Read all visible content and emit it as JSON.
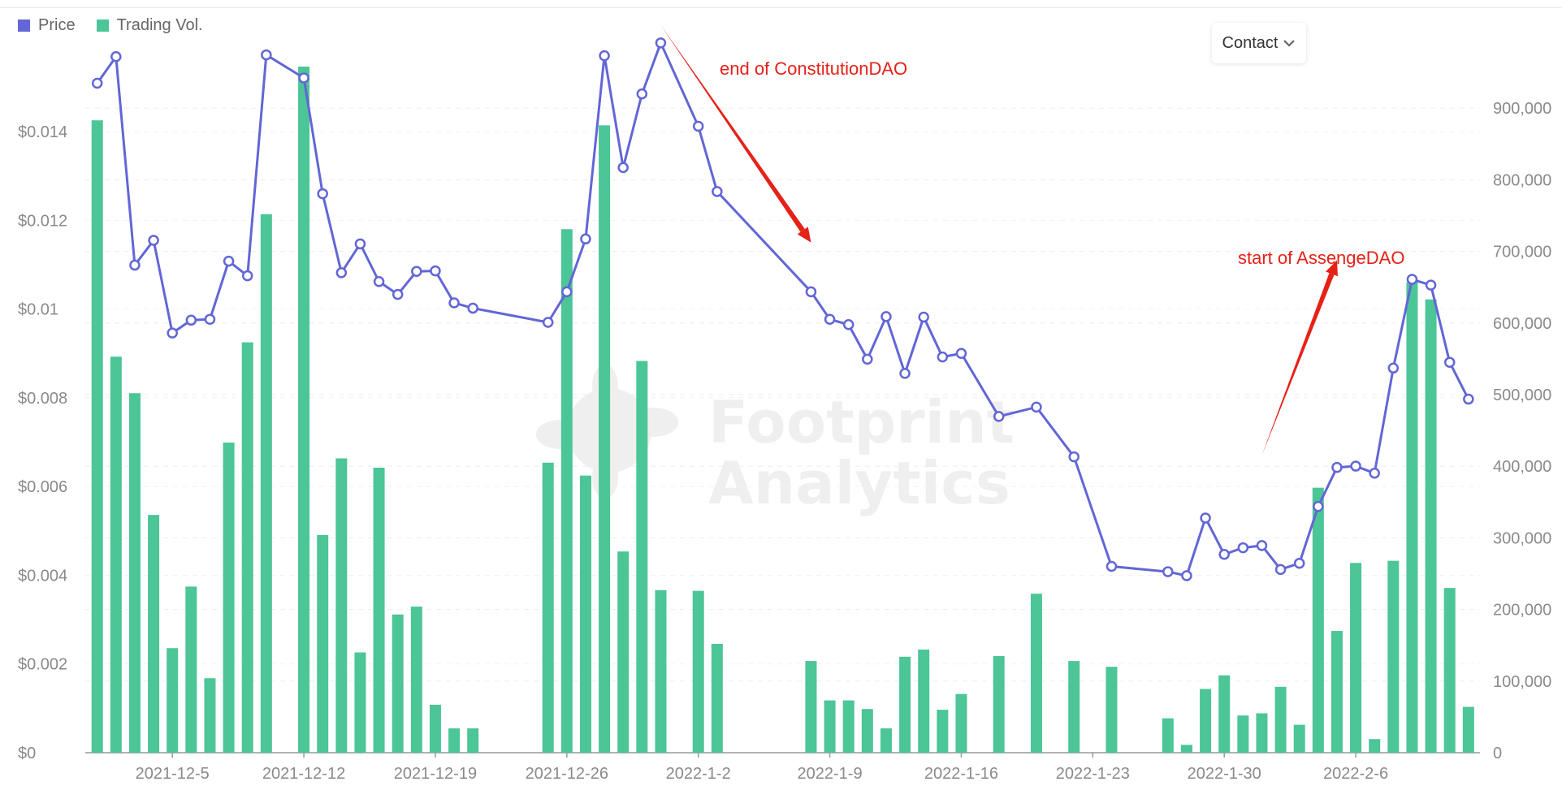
{
  "legend": {
    "price_label": "Price",
    "volume_label": "Trading Vol.",
    "price_color": "#6266d6",
    "volume_color": "#4cc597"
  },
  "contact": {
    "label": "Contact"
  },
  "watermark": {
    "line1": "Footprint",
    "line2": "Analytics"
  },
  "annotations": [
    {
      "text": "end of ConstitutionDAO",
      "arrow_from": {
        "date": "2021-12-31",
        "price": 0.0164
      },
      "arrow_to": {
        "date": "2022-1-8",
        "price": 0.0115
      }
    },
    {
      "text": "start of AssengeDAO",
      "arrow_from": {
        "date": "2022-2-1",
        "price": 0.0067
      },
      "arrow_to": {
        "date": "2022-2-5",
        "price": 0.0111
      }
    }
  ],
  "chart_data": {
    "type": "bar+line",
    "x_start": "2021-11-30",
    "x_ticks": [
      "2021-12-5",
      "2021-12-12",
      "2021-12-19",
      "2021-12-26",
      "2022-1-2",
      "2022-1-9",
      "2022-1-16",
      "2022-1-23",
      "2022-1-30",
      "2022-2-6"
    ],
    "x_tick_days": [
      5,
      12,
      19,
      26,
      33,
      40,
      47,
      54,
      61,
      68
    ],
    "y_left_ticks": [
      "$0",
      "$0.002",
      "$0.004",
      "$0.006",
      "$0.008",
      "$0.01",
      "$0.012",
      "$0.014"
    ],
    "y_left_values": [
      0,
      0.002,
      0.004,
      0.006,
      0.008,
      0.01,
      0.012,
      0.014
    ],
    "y_left_max": 0.016143,
    "y_right_ticks": [
      "0",
      "100,000",
      "200,000",
      "300,000",
      "400,000",
      "500,000",
      "600,000",
      "700,000",
      "800,000",
      "900,000"
    ],
    "y_right_values": [
      0,
      100000,
      200000,
      300000,
      400000,
      500000,
      600000,
      700000,
      800000,
      900000
    ],
    "y_right_max": 1000000,
    "series": [
      {
        "name": "Trading Vol.",
        "kind": "bar",
        "axis": "right",
        "days": [
          1,
          2,
          3,
          4,
          5,
          6,
          7,
          8,
          9,
          10,
          12,
          13,
          14,
          15,
          16,
          17,
          18,
          19,
          20,
          21,
          25,
          26,
          27,
          28,
          29,
          30,
          31,
          33,
          34,
          39,
          40,
          41,
          42,
          43,
          44,
          45,
          46,
          47,
          49,
          51,
          53,
          55,
          58,
          59,
          60,
          61,
          62,
          63,
          64,
          65,
          66,
          67,
          68,
          69,
          70,
          71,
          72,
          73,
          74
        ],
        "values": [
          883000,
          553000,
          502000,
          332000,
          146000,
          232000,
          104000,
          433000,
          573000,
          752000,
          958000,
          304000,
          411000,
          140000,
          398000,
          193000,
          204000,
          67000,
          34000,
          34000,
          405000,
          731000,
          387000,
          876000,
          281000,
          547000,
          227000,
          226000,
          152000,
          128000,
          73000,
          73000,
          61000,
          34000,
          134000,
          144000,
          60000,
          82000,
          135000,
          222000,
          128000,
          120000,
          48000,
          11000,
          89000,
          108000,
          52000,
          55000,
          92000,
          39000,
          370000,
          170000,
          265000,
          19000,
          268000,
          657000,
          633000,
          230000,
          64000
        ]
      },
      {
        "name": "Price",
        "kind": "line",
        "axis": "left",
        "days": [
          1,
          2,
          3,
          4,
          5,
          6,
          7,
          8,
          9,
          10,
          12,
          13,
          14,
          15,
          16,
          17,
          18,
          19,
          20,
          21,
          25,
          26,
          27,
          28,
          29,
          30,
          31,
          33,
          34,
          39,
          40,
          41,
          42,
          43,
          44,
          45,
          46,
          47,
          49,
          51,
          53,
          55,
          58,
          59,
          60,
          61,
          62,
          63,
          64,
          65,
          66,
          67,
          68,
          69,
          70,
          71,
          72,
          73,
          74
        ],
        "values": [
          0.01509,
          0.01569,
          0.01099,
          0.01155,
          0.00946,
          0.00975,
          0.00977,
          0.01108,
          0.01075,
          0.01573,
          0.01521,
          0.0126,
          0.01082,
          0.01147,
          0.01062,
          0.01033,
          0.01085,
          0.01086,
          0.01014,
          0.01002,
          0.0097,
          0.01039,
          0.01158,
          0.01571,
          0.01319,
          0.01485,
          0.016,
          0.01412,
          0.01265,
          0.01039,
          0.00977,
          0.00965,
          0.00887,
          0.00983,
          0.00855,
          0.00982,
          0.00892,
          0.009,
          0.00758,
          0.00779,
          0.00667,
          0.0042,
          0.00408,
          0.00399,
          0.00529,
          0.00447,
          0.00462,
          0.00467,
          0.00413,
          0.00427,
          0.00555,
          0.00643,
          0.00646,
          0.0063,
          0.00867,
          0.01067,
          0.01054,
          0.0088,
          0.00797
        ]
      }
    ]
  }
}
